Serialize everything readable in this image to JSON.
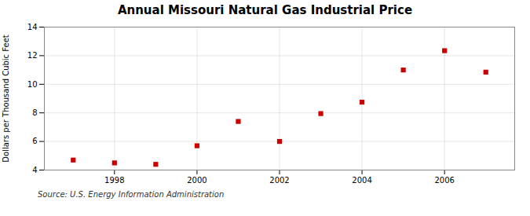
{
  "chart_data": {
    "type": "scatter",
    "title": "Annual Missouri Natural Gas Industrial Price",
    "ylabel": "Dollars per Thousand Cubic Feet",
    "annotation": "Source: U.S. Energy Information Administration",
    "x": [
      1997,
      1998,
      1999,
      2000,
      2001,
      2002,
      2003,
      2004,
      2005,
      2006,
      2007
    ],
    "values": [
      4.7,
      4.5,
      4.4,
      5.7,
      7.4,
      6.0,
      7.95,
      8.75,
      11.0,
      12.35,
      10.85
    ],
    "color": "#cc0000",
    "marker": "square",
    "xlim": [
      1996.3,
      2007.7
    ],
    "xticks": [
      1998,
      2000,
      2002,
      2004,
      2006
    ],
    "ylim": [
      4,
      14
    ],
    "yticks": [
      4,
      6,
      8,
      10,
      12,
      14
    ],
    "grid": true
  }
}
